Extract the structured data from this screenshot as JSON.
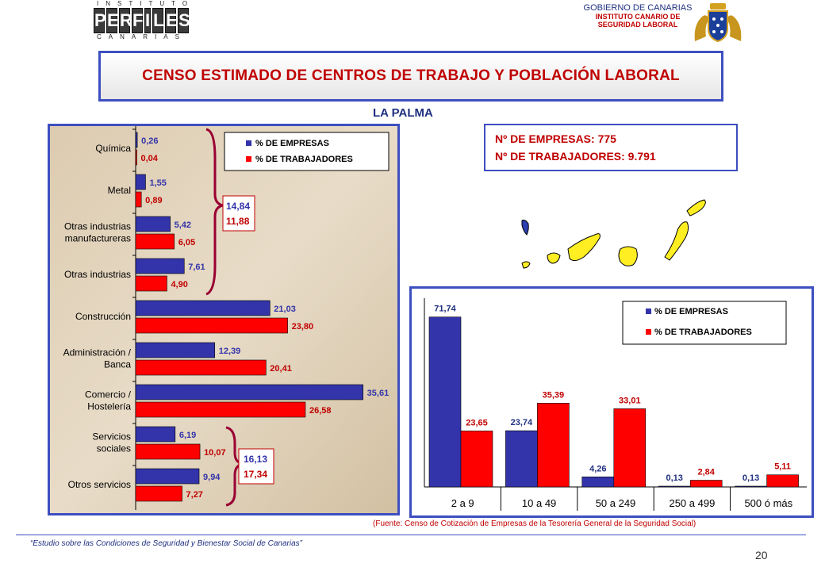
{
  "header": {
    "logo_top": "INSTITUTO",
    "logo_main": "PERFILES",
    "logo_bottom": "CANARIAS",
    "gov_line1": "GOBIERNO DE CANARIAS",
    "gov_line2": "INSTITUTO CANARIO DE",
    "gov_line3": "SEGURIDAD LABORAL"
  },
  "title": "CENSO ESTIMADO DE CENTROS DE TRABAJO Y POBLACIÓN LABORAL",
  "subtitle": "LA PALMA",
  "info": {
    "empresas": "Nº DE EMPRESAS: 775",
    "trabajadores": "Nº DE TRABAJADORES: 9.791"
  },
  "source": "(Fuente: Censo de Cotización de Empresas de la Tesorería General de la Seguridad Social)",
  "footer": "“Estudio sobre las Condiciones de Seguridad y Bienestar Social de Canarias”",
  "page_number": "20",
  "colors": {
    "empresas": "#3333aa",
    "trabajadores": "#ff0000",
    "frame": "#3d4fc0",
    "title": "#c00000"
  },
  "chart_data": [
    {
      "type": "bar",
      "orientation": "horizontal",
      "categories": [
        "Química",
        "Metal",
        "Otras industrias manufactureras",
        "Otras industrias",
        "Construcción",
        "Administración / Banca",
        "Comercio / Hostelería",
        "Servicios sociales",
        "Otros servicios"
      ],
      "category_lines": [
        [
          "Química"
        ],
        [
          "Metal"
        ],
        [
          "Otras industrias",
          "manufactureras"
        ],
        [
          "Otras industrias"
        ],
        [
          "Construcción"
        ],
        [
          "Administración /",
          "Banca"
        ],
        [
          "Comercio /",
          "Hostelería"
        ],
        [
          "Servicios",
          "sociales"
        ],
        [
          "Otros servicios"
        ]
      ],
      "series": [
        {
          "name": "% DE EMPRESAS",
          "values": [
            0.26,
            1.55,
            5.42,
            7.61,
            21.03,
            12.39,
            35.61,
            6.19,
            9.94
          ],
          "labels": [
            "0,26",
            "1,55",
            "5,42",
            "7,61",
            "21,03",
            "12,39",
            "35,61",
            "6,19",
            "9,94"
          ]
        },
        {
          "name": "% DE TRABAJADORES",
          "values": [
            0.04,
            0.89,
            6.05,
            4.9,
            23.8,
            20.41,
            26.58,
            10.07,
            7.27
          ],
          "labels": [
            "0,04",
            "0,89",
            "6,05",
            "4,90",
            "23,80",
            "20,41",
            "26,58",
            "10,07",
            "7,27"
          ]
        }
      ],
      "xlim": [
        0,
        40
      ],
      "legend": "top-right",
      "annotations": [
        {
          "group": "industria",
          "empresas": "14,84",
          "trabajadores": "11,88"
        },
        {
          "group": "servicios",
          "empresas": "16,13",
          "trabajadores": "17,34"
        }
      ]
    },
    {
      "type": "bar",
      "orientation": "vertical",
      "categories": [
        "2 a 9",
        "10 a 49",
        "50 a 249",
        "250 a 499",
        "500 ó más"
      ],
      "series": [
        {
          "name": "% DE EMPRESAS",
          "values": [
            71.74,
            23.74,
            4.26,
            0.13,
            0.13
          ],
          "labels": [
            "71,74",
            "23,74",
            "4,26",
            "0,13",
            "0,13"
          ]
        },
        {
          "name": "% DE TRABAJADORES",
          "values": [
            23.65,
            35.39,
            33.01,
            2.84,
            5.11
          ],
          "labels": [
            "23,65",
            "35,39",
            "33,01",
            "2,84",
            "5,11"
          ]
        }
      ],
      "ylim": [
        0,
        75
      ],
      "legend": "top-right"
    }
  ]
}
